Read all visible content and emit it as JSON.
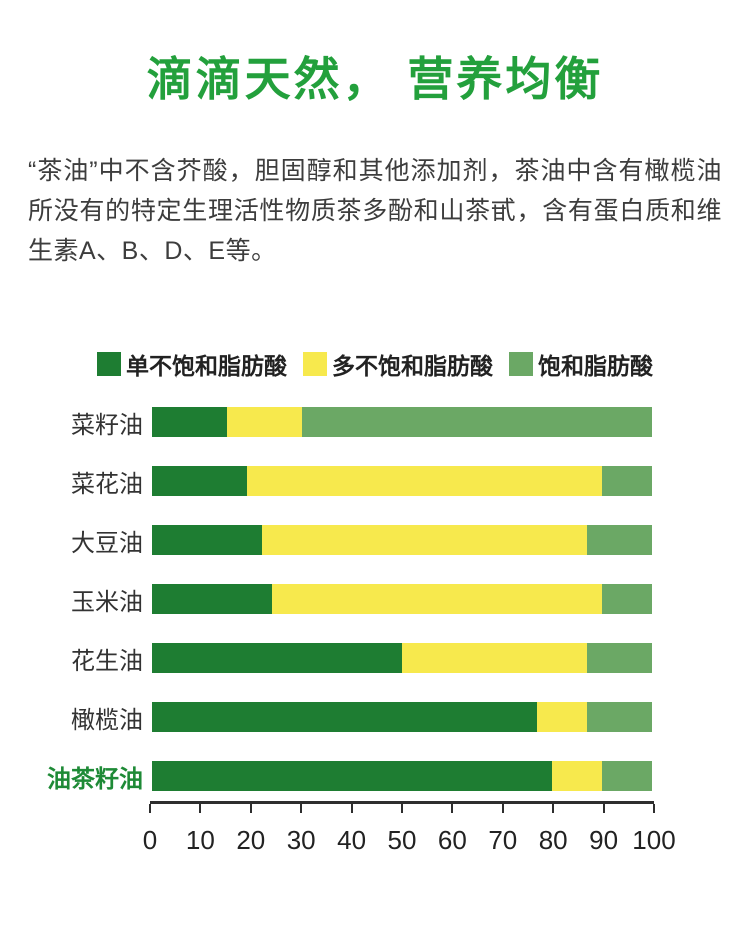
{
  "page": {
    "title": "滴滴天然， 营养均衡",
    "description": "“茶油”中不含芥酸，胆固醇和其他添加剂，茶油中含有橄榄油所没有的特定生理活性物质茶多酚和山茶甙，含有蛋白质和维生素A、B、D、E等。"
  },
  "colors": {
    "title_green": "#23a03c",
    "highlight_label_green": "#1e8a36",
    "axis_color": "#2e2e2e",
    "body_text": "#3d3d3d"
  },
  "chart_data": {
    "type": "bar",
    "orientation": "horizontal",
    "stacked": true,
    "legend_position": "top",
    "grid": false,
    "categories": [
      "菜籽油",
      "菜花油",
      "大豆油",
      "玉米油",
      "花生油",
      "橄榄油",
      "油茶籽油"
    ],
    "highlighted_category": "油茶籽油",
    "series": [
      {
        "name": "单不饱和脂肪酸",
        "color": "#1e7d32",
        "values": [
          15,
          19,
          22,
          24,
          50,
          77,
          80
        ]
      },
      {
        "name": "多不饱和脂肪酸",
        "color": "#f7e94d",
        "values": [
          15,
          71,
          65,
          66,
          37,
          10,
          10
        ]
      },
      {
        "name": "饱和脂肪酸",
        "color": "#6ba865",
        "values": [
          70,
          10,
          13,
          10,
          13,
          13,
          10
        ]
      }
    ],
    "xlim": [
      0,
      100
    ],
    "x_ticks": [
      0,
      10,
      20,
      30,
      40,
      50,
      60,
      70,
      80,
      90,
      100
    ]
  }
}
